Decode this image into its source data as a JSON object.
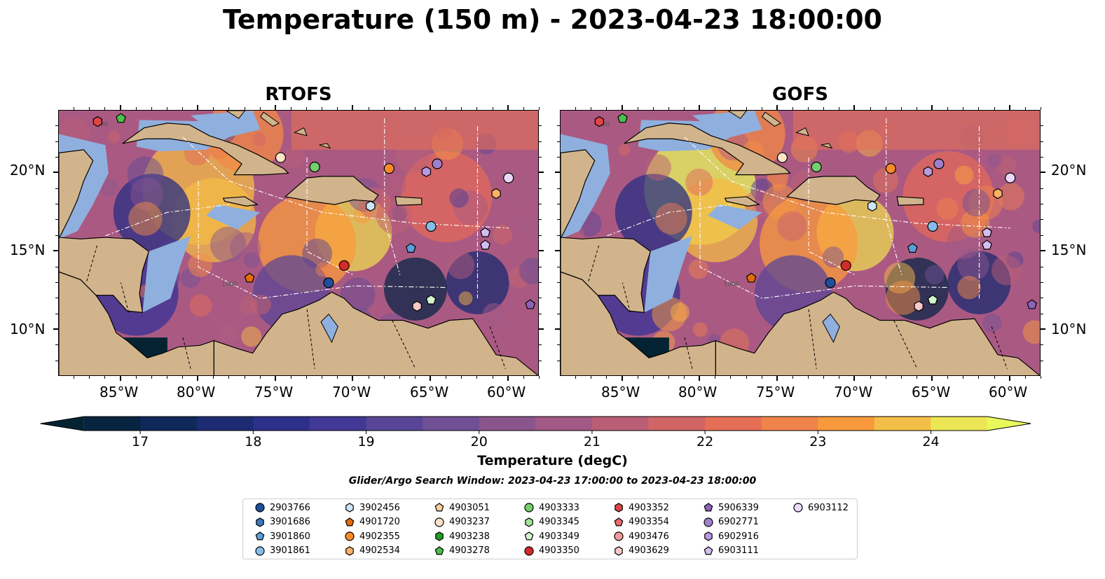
{
  "figure": {
    "title": "Temperature (150 m) - 2023-04-23 18:00:00",
    "panels": [
      {
        "title": "RTOFS"
      },
      {
        "title": "GOFS"
      }
    ],
    "lat_labels": [
      "20°N",
      "15°N",
      "10°N"
    ],
    "lon_labels": [
      "85°W",
      "80°W",
      "75°W",
      "70°W",
      "65°W",
      "60°W"
    ],
    "colorbar": {
      "label": "Temperature (degC)",
      "ticks": [
        "17",
        "18",
        "19",
        "20",
        "21",
        "22",
        "23",
        "24"
      ],
      "range": [
        16.5,
        24.5
      ],
      "colormap": "thermal"
    },
    "search_window": "Glider/Argo Search Window: 2023-04-23 17:00:00 to 2023-04-23 18:00:00"
  },
  "map": {
    "extent": {
      "lon": [
        -89,
        -58
      ],
      "lat": [
        7,
        24
      ]
    },
    "land_color": "#d2b48c",
    "shelf_color": "#8fb0de",
    "contour_labels": [
      "100",
      "1000"
    ]
  },
  "legend": {
    "items": [
      {
        "id": "2903766",
        "marker": "circle",
        "color": "#1f4e9c"
      },
      {
        "id": "3901686",
        "marker": "hexagon",
        "color": "#3a78b8"
      },
      {
        "id": "3901860",
        "marker": "pentagon",
        "color": "#5b9fdb"
      },
      {
        "id": "3901861",
        "marker": "circle",
        "color": "#86bde8"
      },
      {
        "id": "3902456",
        "marker": "hexagon",
        "color": "#cde6f7"
      },
      {
        "id": "4901720",
        "marker": "pentagon",
        "color": "#e36c0a"
      },
      {
        "id": "4902355",
        "marker": "circle",
        "color": "#f78b2a"
      },
      {
        "id": "4902534",
        "marker": "hexagon",
        "color": "#fbb168"
      },
      {
        "id": "4903051",
        "marker": "pentagon",
        "color": "#fdcf9e"
      },
      {
        "id": "4903237",
        "marker": "circle",
        "color": "#fde3c8"
      },
      {
        "id": "4903238",
        "marker": "hexagon",
        "color": "#1e9e1e"
      },
      {
        "id": "4903278",
        "marker": "pentagon",
        "color": "#49c04a"
      },
      {
        "id": "4903333",
        "marker": "circle",
        "color": "#74cf6c"
      },
      {
        "id": "4903345",
        "marker": "hexagon",
        "color": "#a4e29a"
      },
      {
        "id": "4903349",
        "marker": "pentagon",
        "color": "#d2f4cd"
      },
      {
        "id": "4903350",
        "marker": "circle",
        "color": "#d22b2b"
      },
      {
        "id": "4903352",
        "marker": "hexagon",
        "color": "#e04545"
      },
      {
        "id": "4903354",
        "marker": "pentagon",
        "color": "#ec6a6a"
      },
      {
        "id": "4903476",
        "marker": "circle",
        "color": "#f59898"
      },
      {
        "id": "4903629",
        "marker": "hexagon",
        "color": "#f8c9c9"
      },
      {
        "id": "5906339",
        "marker": "pentagon",
        "color": "#8b63b8"
      },
      {
        "id": "6902771",
        "marker": "circle",
        "color": "#a07fcc"
      },
      {
        "id": "6902916",
        "marker": "hexagon",
        "color": "#b99ae0"
      },
      {
        "id": "6903111",
        "marker": "pentagon",
        "color": "#d4bdf0"
      },
      {
        "id": "6903112",
        "marker": "circle",
        "color": "#ead9fb"
      }
    ]
  },
  "floats": [
    {
      "id": "4903352",
      "lon": -86.5,
      "lat": 23.3
    },
    {
      "id": "4903278",
      "lon": -85.0,
      "lat": 23.5
    },
    {
      "id": "4903237",
      "lon": -74.7,
      "lat": 21.0
    },
    {
      "id": "4903333",
      "lon": -72.5,
      "lat": 20.4
    },
    {
      "id": "4902355",
      "lon": -67.7,
      "lat": 20.3
    },
    {
      "id": "6902916",
      "lon": -65.3,
      "lat": 20.1
    },
    {
      "id": "6902771",
      "lon": -64.6,
      "lat": 20.6
    },
    {
      "id": "6903112",
      "lon": -60.0,
      "lat": 19.7
    },
    {
      "id": "4902534",
      "lon": -60.8,
      "lat": 18.7
    },
    {
      "id": "3902456",
      "lon": -68.9,
      "lat": 17.9
    },
    {
      "id": "3901861",
      "lon": -65.0,
      "lat": 16.6
    },
    {
      "id": "3901860",
      "lon": -66.3,
      "lat": 15.2
    },
    {
      "id": "6903111",
      "lon": -61.5,
      "lat": 16.2
    },
    {
      "id": "6903111",
      "lon": -61.5,
      "lat": 15.4
    },
    {
      "id": "4901720",
      "lon": -76.7,
      "lat": 13.3
    },
    {
      "id": "4903350",
      "lon": -70.6,
      "lat": 14.1
    },
    {
      "id": "2903766",
      "lon": -71.6,
      "lat": 13.0
    },
    {
      "id": "4903349",
      "lon": -65.0,
      "lat": 11.9
    },
    {
      "id": "4903629",
      "lon": -65.9,
      "lat": 11.5
    },
    {
      "id": "5906339",
      "lon": -58.6,
      "lat": 11.6
    }
  ]
}
